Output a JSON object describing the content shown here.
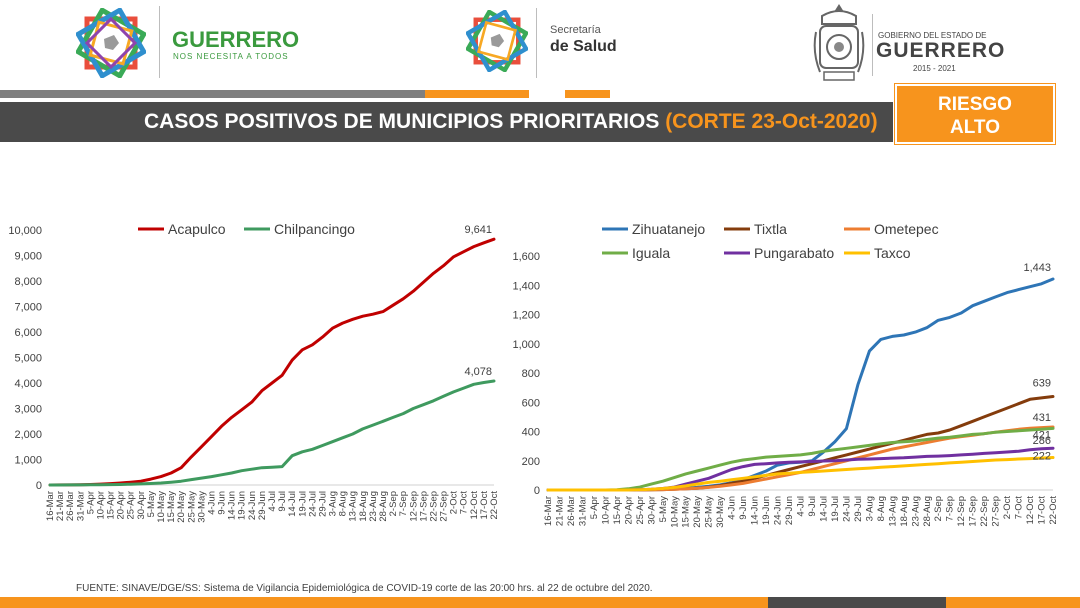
{
  "header": {
    "guerrero_logo": {
      "title": "GUERRERO",
      "subtitle": "NOS NECESITA A TODOS"
    },
    "salud_logo": {
      "line1": "Secretaría",
      "line2": "de Salud"
    },
    "gobierno_logo": {
      "line1": "GOBIERNO DEL ESTADO DE",
      "line2": "GUERRERO",
      "line3": "2015 - 2021"
    },
    "title_main": "CASOS POSITIVOS DE MUNICIPIOS PRIORITARIOS ",
    "title_cut": "(CORTE 23-Oct-2020)",
    "risk_line1": "RIESGO",
    "risk_line2": "ALTO"
  },
  "colors": {
    "orange": "#f7941d",
    "dark_grey": "#4a4a4a",
    "green_brand": "#3a9a3e"
  },
  "footer": "FUENTE: SINAVE/DGE/SS: Sistema de Vigilancia Epidemiológica de COVID-19 corte de las 20:00 hrs. al 22 de octubre del 2020.",
  "chart_data": [
    {
      "type": "line",
      "title": "",
      "xlabel": "",
      "ylabel": "",
      "ylim": [
        0,
        10000
      ],
      "yticks": [
        "0",
        "1,000",
        "2,000",
        "3,000",
        "4,000",
        "5,000",
        "6,000",
        "7,000",
        "8,000",
        "9,000",
        "10,000"
      ],
      "grid": false,
      "legend": "top",
      "categories": [
        "16-Mar",
        "21-Mar",
        "26-Mar",
        "31-Mar",
        "5-Apr",
        "10-Apr",
        "15-Apr",
        "20-Apr",
        "25-Apr",
        "30-Apr",
        "5-May",
        "10-May",
        "15-May",
        "20-May",
        "25-May",
        "30-May",
        "4-Jun",
        "9-Jun",
        "14-Jun",
        "19-Jun",
        "24-Jun",
        "29-Jun",
        "4-Jul",
        "9-Jul",
        "14-Jul",
        "19-Jul",
        "24-Jul",
        "29-Jul",
        "3-Aug",
        "8-Aug",
        "13-Aug",
        "18-Aug",
        "23-Aug",
        "28-Aug",
        "2-Sep",
        "7-Sep",
        "12-Sep",
        "17-Sep",
        "22-Sep",
        "27-Sep",
        "2-Oct",
        "7-Oct",
        "12-Oct",
        "17-Oct",
        "22-Oct"
      ],
      "series": [
        {
          "name": "Acapulco",
          "color": "#c00000",
          "end_label": "9,641",
          "values": [
            0,
            2,
            5,
            10,
            20,
            35,
            55,
            80,
            110,
            150,
            230,
            330,
            470,
            680,
            1100,
            1500,
            1900,
            2300,
            2650,
            2950,
            3250,
            3700,
            4000,
            4300,
            4900,
            5300,
            5500,
            5800,
            6150,
            6350,
            6500,
            6620,
            6700,
            6800,
            7050,
            7300,
            7600,
            7950,
            8300,
            8600,
            8950,
            9150,
            9350,
            9500,
            9641
          ]
        },
        {
          "name": "Chilpancingo",
          "color": "#3f9a5f",
          "end_label": "4,078",
          "values": [
            0,
            1,
            2,
            4,
            6,
            10,
            15,
            20,
            30,
            45,
            60,
            80,
            110,
            150,
            210,
            270,
            330,
            400,
            470,
            560,
            620,
            680,
            700,
            720,
            1150,
            1300,
            1400,
            1550,
            1700,
            1850,
            2000,
            2200,
            2350,
            2500,
            2650,
            2800,
            3000,
            3150,
            3300,
            3480,
            3650,
            3800,
            3950,
            4020,
            4078
          ]
        }
      ]
    },
    {
      "type": "line",
      "title": "",
      "xlabel": "",
      "ylabel": "",
      "ylim": [
        0,
        1600
      ],
      "yticks": [
        "0",
        "200",
        "400",
        "600",
        "800",
        "1,000",
        "1,200",
        "1,400",
        "1,600"
      ],
      "grid": false,
      "legend": "top",
      "categories": [
        "16-Mar",
        "21-Mar",
        "26-Mar",
        "31-Mar",
        "5-Apr",
        "10-Apr",
        "15-Apr",
        "20-Apr",
        "25-Apr",
        "30-Apr",
        "5-May",
        "10-May",
        "15-May",
        "20-May",
        "25-May",
        "30-May",
        "4-Jun",
        "9-Jun",
        "14-Jun",
        "19-Jun",
        "24-Jun",
        "29-Jun",
        "4-Jul",
        "9-Jul",
        "14-Jul",
        "19-Jul",
        "24-Jul",
        "29-Jul",
        "3-Aug",
        "8-Aug",
        "13-Aug",
        "18-Aug",
        "23-Aug",
        "28-Aug",
        "2-Sep",
        "7-Sep",
        "12-Sep",
        "17-Sep",
        "22-Sep",
        "27-Sep",
        "2-Oct",
        "7-Oct",
        "12-Oct",
        "17-Oct",
        "22-Oct"
      ],
      "series": [
        {
          "name": "Zihuatanejo",
          "color": "#2e75b6",
          "end_label": "1,443",
          "values": [
            0,
            0,
            0,
            0,
            0,
            0,
            0,
            1,
            2,
            3,
            5,
            8,
            12,
            18,
            25,
            35,
            50,
            70,
            100,
            130,
            170,
            185,
            190,
            200,
            260,
            330,
            420,
            720,
            950,
            1030,
            1050,
            1060,
            1080,
            1110,
            1160,
            1180,
            1210,
            1260,
            1290,
            1320,
            1350,
            1370,
            1390,
            1410,
            1443
          ]
        },
        {
          "name": "Tixtla",
          "color": "#843c0c",
          "end_label": "639",
          "values": [
            0,
            0,
            0,
            0,
            0,
            0,
            0,
            0,
            1,
            2,
            3,
            5,
            8,
            12,
            20,
            30,
            45,
            60,
            80,
            100,
            120,
            140,
            160,
            180,
            200,
            220,
            240,
            260,
            280,
            300,
            320,
            340,
            360,
            380,
            390,
            410,
            440,
            470,
            500,
            530,
            560,
            590,
            620,
            630,
            639
          ]
        },
        {
          "name": "Ometepec",
          "color": "#ed7d31",
          "end_label": "431",
          "values": [
            0,
            0,
            0,
            0,
            0,
            0,
            0,
            0,
            1,
            2,
            3,
            5,
            8,
            12,
            18,
            25,
            35,
            45,
            60,
            75,
            90,
            105,
            120,
            140,
            160,
            180,
            200,
            220,
            240,
            260,
            280,
            295,
            310,
            325,
            340,
            355,
            365,
            375,
            385,
            395,
            405,
            415,
            422,
            427,
            431
          ]
        },
        {
          "name": "Iguala",
          "color": "#70ad47",
          "end_label": "421",
          "values": [
            0,
            0,
            0,
            0,
            0,
            0,
            2,
            8,
            20,
            40,
            60,
            85,
            110,
            130,
            150,
            170,
            190,
            205,
            215,
            225,
            230,
            235,
            240,
            250,
            265,
            275,
            285,
            295,
            305,
            315,
            325,
            330,
            335,
            345,
            355,
            360,
            370,
            380,
            385,
            395,
            400,
            405,
            410,
            416,
            421
          ]
        },
        {
          "name": "Pungarabato",
          "color": "#7030a0",
          "end_label": "286",
          "values": [
            0,
            0,
            0,
            0,
            0,
            0,
            0,
            0,
            2,
            5,
            10,
            20,
            40,
            60,
            80,
            110,
            140,
            160,
            175,
            180,
            185,
            190,
            192,
            195,
            198,
            200,
            205,
            210,
            212,
            215,
            218,
            220,
            225,
            230,
            232,
            235,
            240,
            245,
            250,
            255,
            260,
            265,
            275,
            282,
            286
          ]
        },
        {
          "name": "Taxco",
          "color": "#ffc000",
          "end_label": "222",
          "values": [
            0,
            0,
            0,
            0,
            0,
            0,
            0,
            0,
            2,
            5,
            10,
            18,
            28,
            40,
            52,
            60,
            70,
            80,
            90,
            100,
            110,
            115,
            120,
            125,
            130,
            135,
            140,
            145,
            150,
            155,
            160,
            165,
            170,
            175,
            180,
            185,
            190,
            195,
            200,
            205,
            208,
            212,
            215,
            218,
            222
          ]
        }
      ]
    }
  ]
}
